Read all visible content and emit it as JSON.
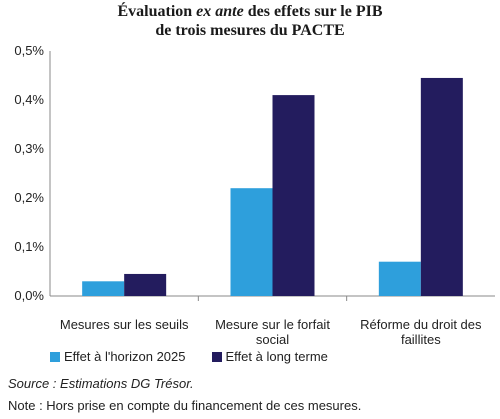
{
  "chart_data": {
    "type": "bar",
    "title_part1": "Évaluation",
    "title_italic": "ex ante",
    "title_part2": "des effets sur le PIB",
    "title_line2": "de trois mesures du PACTE",
    "categories": [
      [
        "Mesures sur les seuils"
      ],
      [
        "Mesure sur le forfait",
        "social"
      ],
      [
        "Réforme du droit des",
        "faillites"
      ]
    ],
    "series": [
      {
        "name": "Effet à l'horizon 2025",
        "color": "#2e9fdc",
        "values": [
          0.03,
          0.22,
          0.07
        ]
      },
      {
        "name": "Effet à long terme",
        "color": "#231c5e",
        "values": [
          0.045,
          0.41,
          0.445
        ]
      }
    ],
    "ylim": [
      0,
      0.5
    ],
    "yticks": [
      "0,0%",
      "0,1%",
      "0,2%",
      "0,3%",
      "0,4%",
      "0,5%"
    ],
    "legend_position": "bottom"
  },
  "source": "Source : Estimations DG Trésor.",
  "note": "Note : Hors prise en compte du financement de ces mesures."
}
